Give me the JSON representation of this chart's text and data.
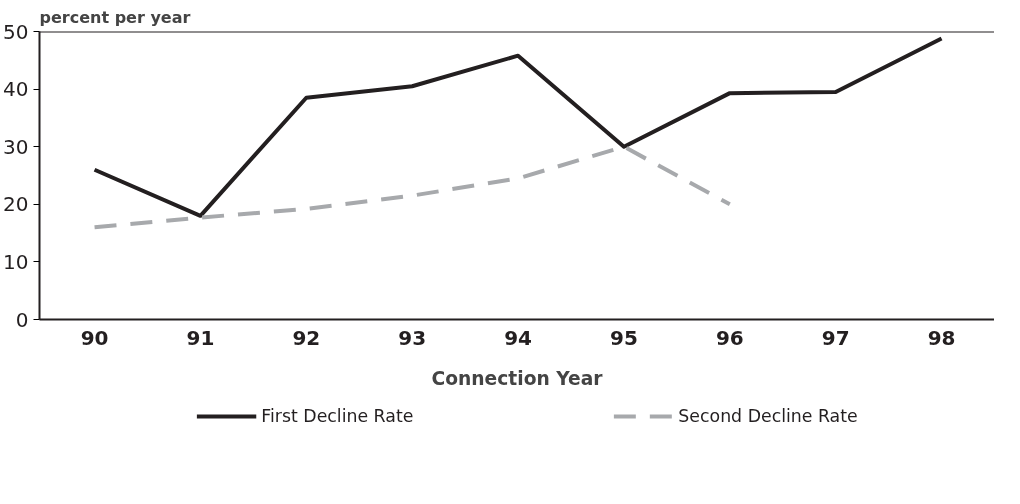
{
  "chart_data": {
    "type": "line",
    "ylabel": "percent per year",
    "xlabel": "Connection Year",
    "categories": [
      "90",
      "91",
      "92",
      "93",
      "94",
      "95",
      "96",
      "97",
      "98"
    ],
    "series": [
      {
        "name": "First Decline Rate",
        "color": "#231f20",
        "line_style": "solid",
        "values": [
          26,
          18,
          38.5,
          40.5,
          45.8,
          30,
          39.3,
          39.5,
          48.8
        ]
      },
      {
        "name": "Second Decline Rate",
        "color": "#a7a9ac",
        "line_style": "dashed",
        "values": [
          16,
          17.7,
          19.2,
          21.5,
          24.5,
          30,
          20,
          null,
          null
        ]
      }
    ],
    "ylim": [
      0,
      50
    ],
    "yticks": [
      0,
      10,
      20,
      30,
      40,
      50
    ],
    "grid": false,
    "legend": "bottom",
    "marker": "none"
  }
}
